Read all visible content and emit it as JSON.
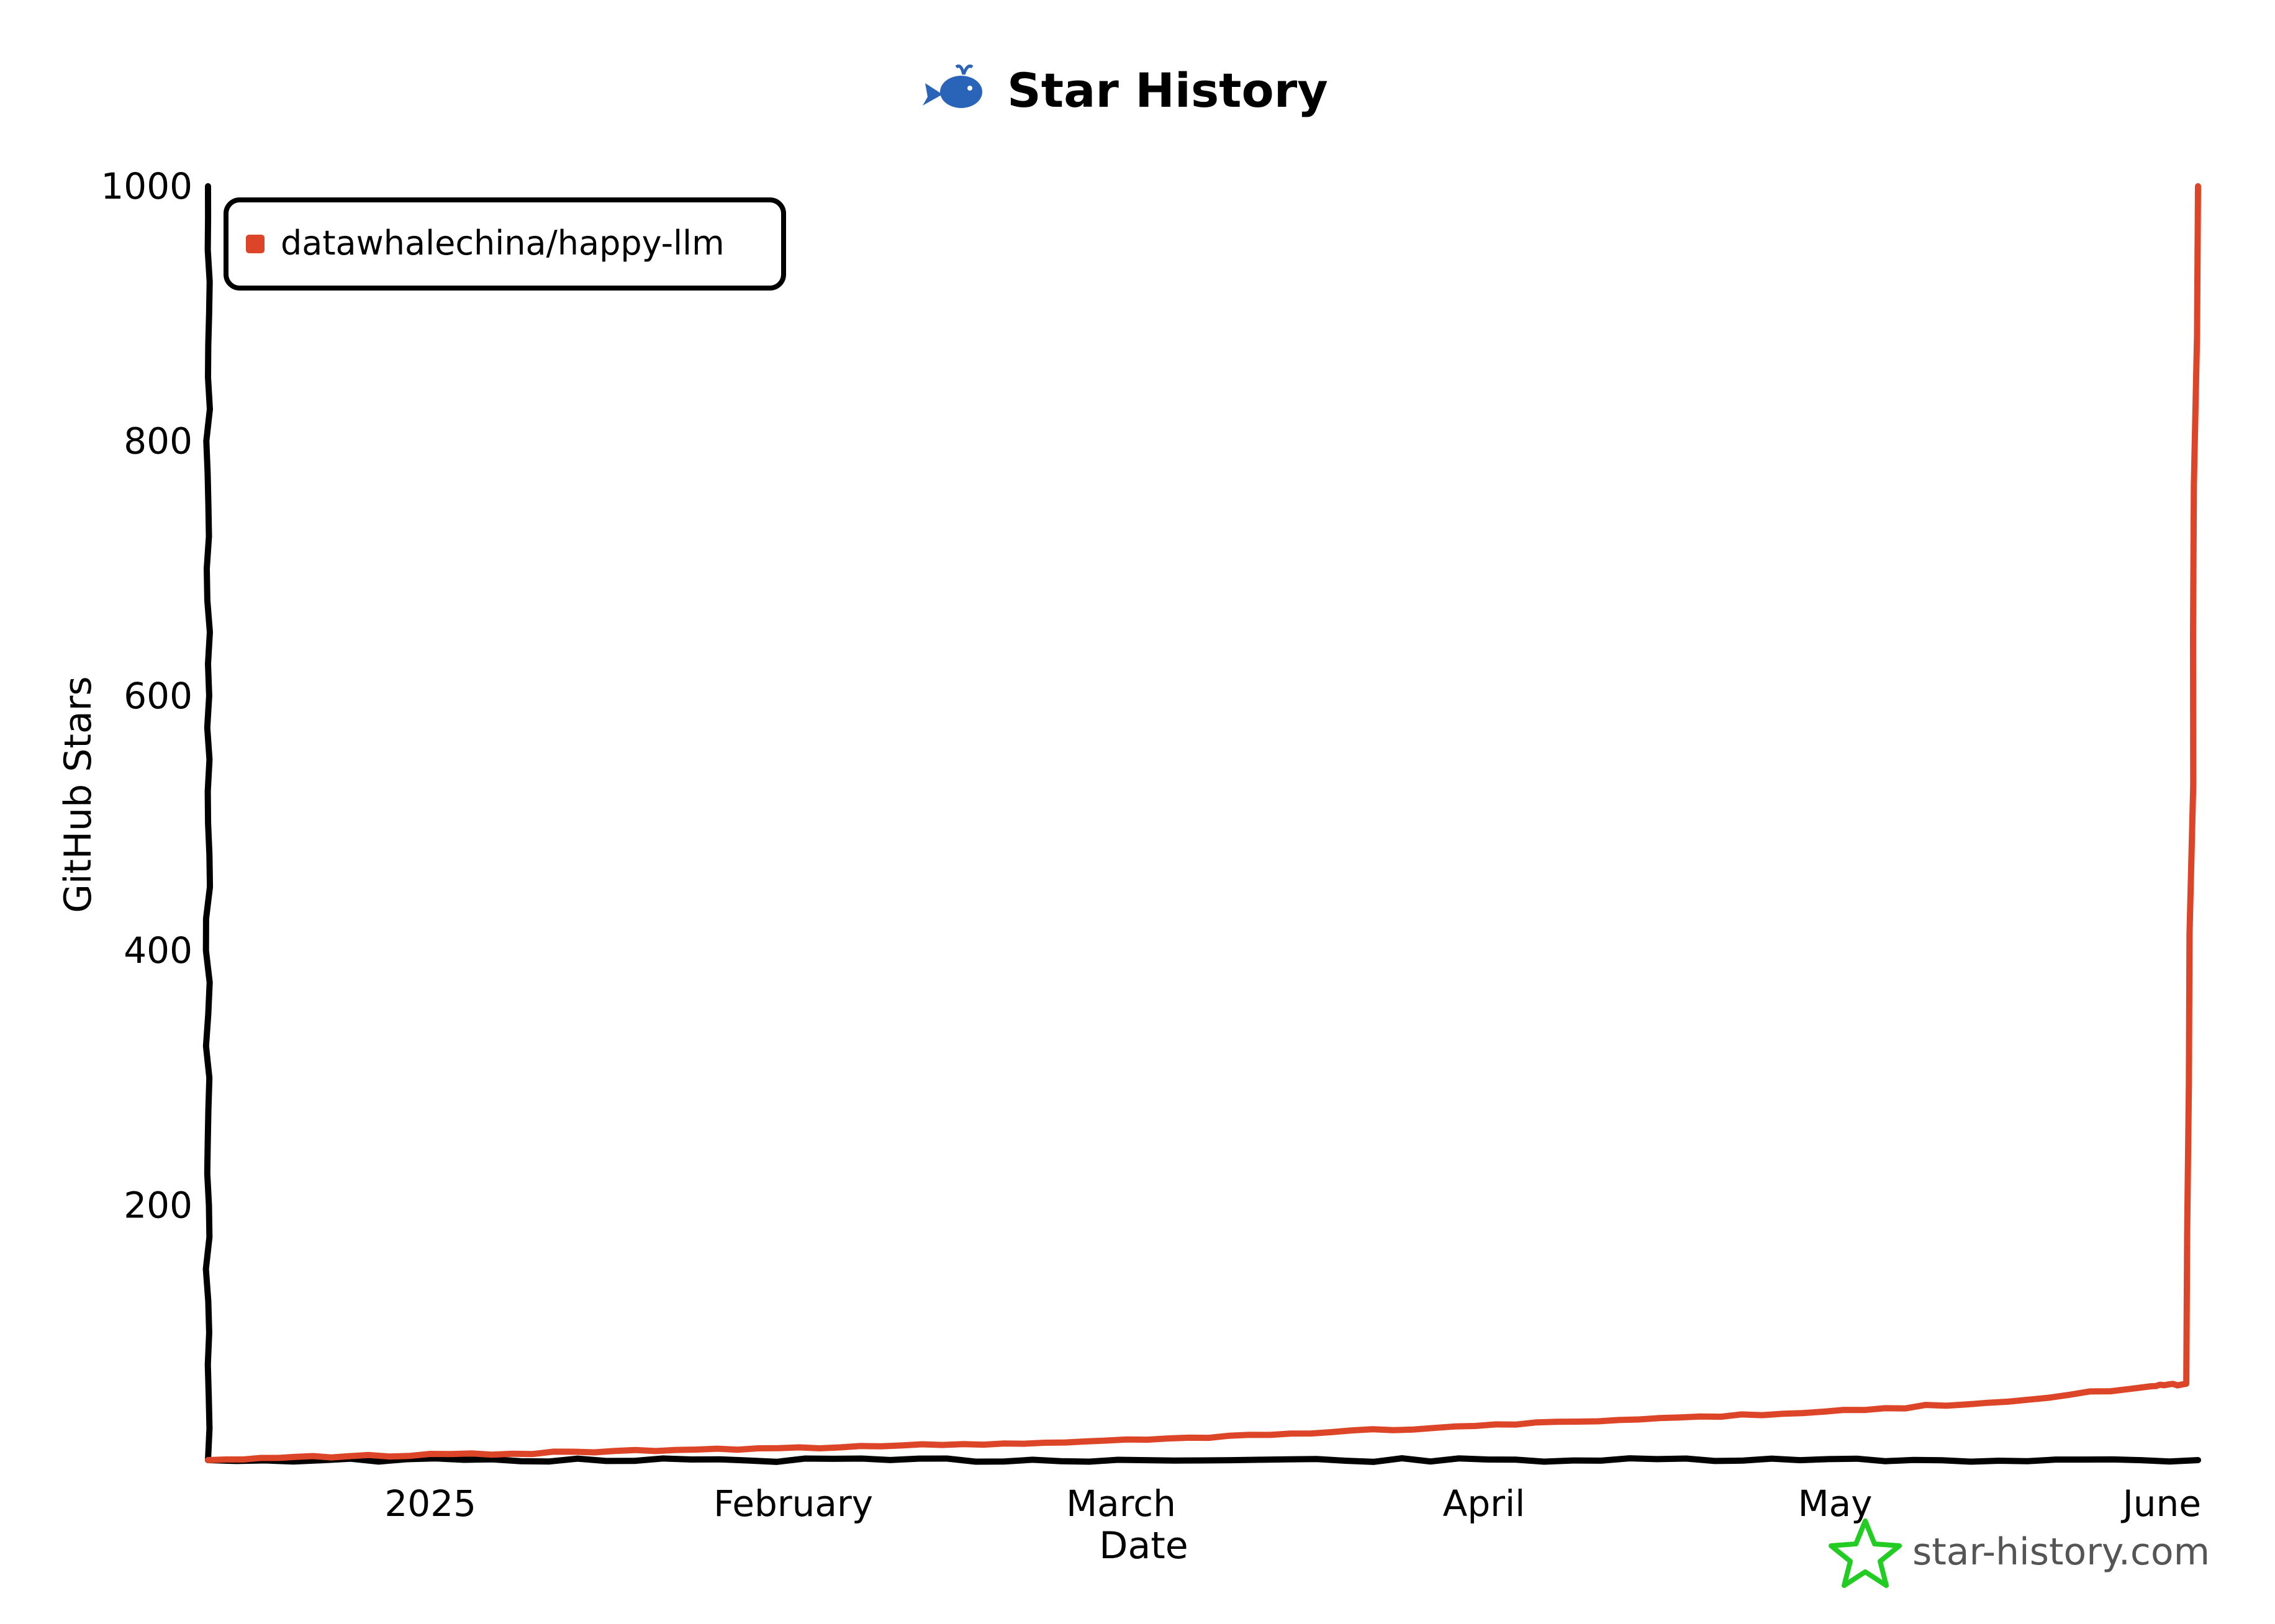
{
  "colors": {
    "series": "#dd4528",
    "axis": "#000000",
    "watermark_star": "#22cc22",
    "watermark_text": "#555555",
    "logo": "#2a64b8"
  },
  "chart_data": {
    "type": "line",
    "title": "Star History",
    "xlabel": "Date",
    "ylabel": "GitHub Stars",
    "x_tick_labels": [
      "2025",
      "February",
      "March",
      "April",
      "May",
      "June"
    ],
    "x_tick_dates": [
      "2025-01-01",
      "2025-02-01",
      "2025-03-01",
      "2025-04-01",
      "2025-05-01",
      "2025-06-01"
    ],
    "y_tick_labels": [
      "200",
      "400",
      "600",
      "800",
      "1000"
    ],
    "y_ticks": [
      200,
      400,
      600,
      800,
      1000
    ],
    "xlim": [
      "2024-12-13",
      "2025-06-01"
    ],
    "ylim": [
      0,
      1000
    ],
    "grid": false,
    "legend_position": "top-left",
    "series": [
      {
        "name": "datawhalechina/happy-llm",
        "color": "#dd4528",
        "points": [
          [
            "2024-12-13",
            0
          ],
          [
            "2024-12-25",
            3
          ],
          [
            "2025-01-08",
            5
          ],
          [
            "2025-01-22",
            8
          ],
          [
            "2025-02-05",
            10
          ],
          [
            "2025-02-19",
            13
          ],
          [
            "2025-03-05",
            17
          ],
          [
            "2025-03-19",
            22
          ],
          [
            "2025-04-02",
            28
          ],
          [
            "2025-04-16",
            33
          ],
          [
            "2025-04-30",
            38
          ],
          [
            "2025-05-14",
            45
          ],
          [
            "2025-05-28",
            58
          ],
          [
            "2025-05-31",
            60
          ],
          [
            "2025-06-01",
            1000
          ]
        ]
      }
    ]
  },
  "watermark": {
    "text": "star-history.com",
    "icon": "star-icon"
  },
  "header": {
    "logo_icon": "whale-icon"
  }
}
